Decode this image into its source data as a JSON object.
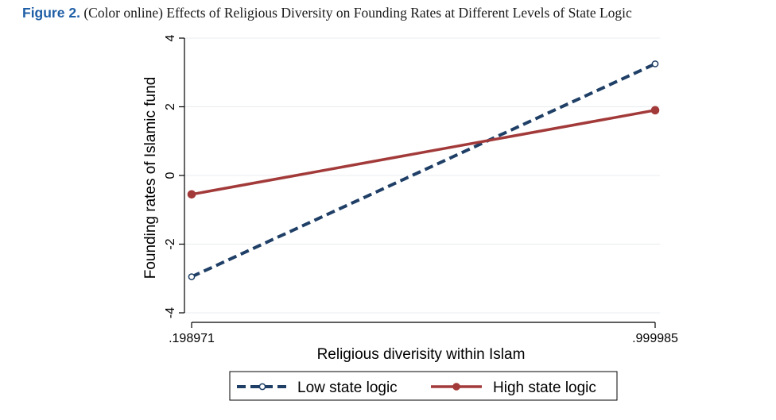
{
  "caption": {
    "label": "Figure 2.",
    "text": "(Color online) Effects of Religious Diversity on Founding Rates at Different Levels of State Logic"
  },
  "chart_data": {
    "type": "line",
    "xlabel": "Religious diverisity within Islam",
    "ylabel": "Founding rates of Islamic fund",
    "x": [
      0.198971,
      0.999985
    ],
    "x_tick_labels": [
      ".198971",
      ".999985"
    ],
    "ylim": [
      -4,
      4
    ],
    "y_ticks": [
      -4,
      -2,
      0,
      2,
      4
    ],
    "y_tick_labels": [
      "-4",
      "-2",
      "0",
      "2",
      "4"
    ],
    "grid": true,
    "legend_position": "bottom",
    "series": [
      {
        "name": "Low state logic",
        "values": [
          -2.95,
          3.25
        ],
        "color": "#1f3f66",
        "style": "dashed",
        "marker": "hollow-circle"
      },
      {
        "name": "High state logic",
        "values": [
          -0.55,
          1.9
        ],
        "color": "#a33a3a",
        "style": "solid",
        "marker": "filled-circle"
      }
    ]
  }
}
